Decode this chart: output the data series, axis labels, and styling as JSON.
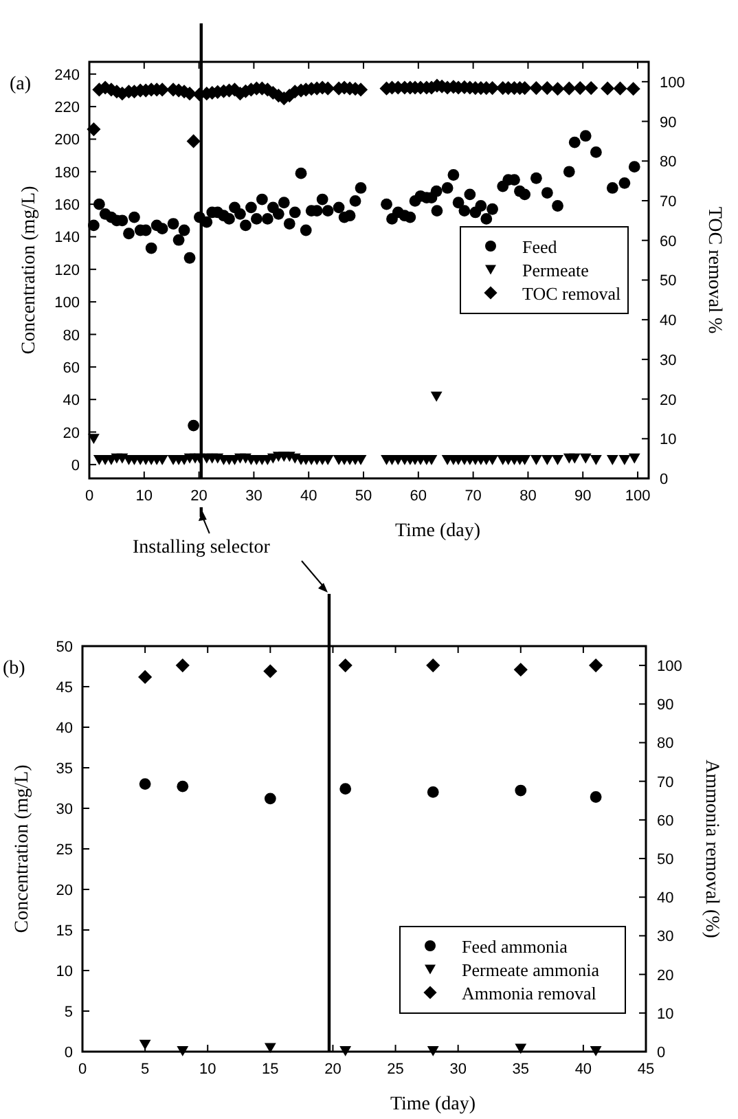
{
  "chart_data": [
    {
      "type": "scatter",
      "title": "(a)",
      "xlabel": "Time (day)",
      "ylabel": "Concentration (mg/L)",
      "y2label": "TOC removal %",
      "xlim": [
        0,
        102
      ],
      "xticks": [
        0,
        10,
        20,
        30,
        40,
        50,
        60,
        70,
        80,
        90,
        100
      ],
      "ylim": [
        -8.5,
        247.5
      ],
      "yticks": [
        0,
        20,
        40,
        60,
        80,
        100,
        120,
        140,
        160,
        180,
        200,
        220,
        240
      ],
      "y2lim": [
        0,
        105
      ],
      "y2ticks": [
        0,
        10,
        20,
        30,
        40,
        50,
        60,
        70,
        80,
        90,
        100
      ],
      "legend": "right",
      "ref_lines": [
        {
          "axis": "x",
          "value": 20.4
        }
      ],
      "annotations": [
        "Installing selector"
      ],
      "series": [
        {
          "name": "Feed",
          "color": "#000000",
          "marker": "circle",
          "x": [
            0.8,
            1.8,
            2.9,
            4,
            5,
            6,
            7.2,
            8.2,
            9.3,
            10.3,
            11.3,
            12.3,
            13.3,
            15.3,
            16.3,
            17.3,
            18.3,
            19,
            20.1,
            21.4,
            22.4,
            23.4,
            24.5,
            25.5,
            26.5,
            27.5,
            28.5,
            29.5,
            30.5,
            31.5,
            32.5,
            33.5,
            34.5,
            35.5,
            36.5,
            37.5,
            38.6,
            39.5,
            40.5,
            41.5,
            42.5,
            43.5,
            45.5,
            46.5,
            47.5,
            48.5,
            49.5,
            54.2,
            55.2,
            56.3,
            57.5,
            58.5,
            59.4,
            60.4,
            61.5,
            62.4,
            63.3,
            63.4,
            65.3,
            66.4,
            67.3,
            68.4,
            69.4,
            70.4,
            71.4,
            72.4,
            73.5,
            75.4,
            76.4,
            77.5,
            78.5,
            79.4,
            81.5,
            83.5,
            85.4,
            87.5,
            88.5,
            90.5,
            92.4,
            95.4,
            97.6,
            99.4
          ],
          "values": [
            147,
            160,
            154,
            152,
            150,
            150,
            142,
            152,
            144,
            144,
            133,
            147,
            145,
            148,
            138,
            144,
            127,
            24,
            152,
            149,
            155,
            155,
            153,
            151,
            158,
            154,
            147,
            158,
            151,
            163,
            151,
            158,
            154,
            161,
            148,
            155,
            179,
            144,
            156,
            156,
            163,
            156,
            158,
            152,
            153,
            162,
            170,
            160,
            151,
            155,
            153,
            152,
            162,
            165,
            164,
            164,
            168,
            156,
            170,
            178,
            161,
            156,
            166,
            155,
            159,
            151,
            157,
            171,
            175,
            175,
            168,
            166,
            176,
            167,
            159,
            180,
            198,
            202,
            192,
            170,
            173,
            183
          ]
        },
        {
          "name": "Permeate",
          "color": "#000000",
          "marker": "triangle",
          "x": [
            0.8,
            1.8,
            2.9,
            4,
            5,
            6,
            7.2,
            8.2,
            9.3,
            10.3,
            11.3,
            12.3,
            13.3,
            15.3,
            16.3,
            17.3,
            18.3,
            19.3,
            20.1,
            21.4,
            22.4,
            23.4,
            24.5,
            25.5,
            26.5,
            27.5,
            28.5,
            29.5,
            30.5,
            31.5,
            32.5,
            33.5,
            34.5,
            35.5,
            36.5,
            37.5,
            38.6,
            39.5,
            40.5,
            41.5,
            42.5,
            43.5,
            45.5,
            46.5,
            47.5,
            48.5,
            49.5,
            54.2,
            55.2,
            56.3,
            57.5,
            58.5,
            59.4,
            60.4,
            61.5,
            62.4,
            63.3,
            65.3,
            66.4,
            67.3,
            68.4,
            69.4,
            70.4,
            71.4,
            72.4,
            73.5,
            75.4,
            76.4,
            77.5,
            78.5,
            79.4,
            81.5,
            83.5,
            85.4,
            87.5,
            88.5,
            90.5,
            92.4,
            95.4,
            97.6,
            99.4
          ],
          "values": [
            16,
            3,
            3,
            3,
            4,
            4,
            3,
            3,
            3,
            3,
            3,
            3,
            3,
            3,
            3,
            3,
            4,
            4,
            4,
            4,
            4,
            4,
            3,
            3,
            3,
            4,
            4,
            3,
            3,
            3,
            3,
            4,
            5,
            5,
            5,
            4,
            3,
            3,
            3,
            3,
            3,
            3,
            3,
            3,
            3,
            3,
            3,
            3,
            3,
            3,
            3,
            3,
            3,
            3,
            3,
            3,
            42,
            3,
            3,
            3,
            3,
            3,
            3,
            3,
            3,
            3,
            3,
            3,
            3,
            3,
            3,
            3,
            3,
            3,
            4,
            4,
            4,
            3,
            3,
            3,
            4
          ]
        },
        {
          "name": "TOC removal",
          "color": "#000000",
          "marker": "diamond",
          "axis": "y2",
          "x": [
            0.8,
            1.8,
            2.9,
            4,
            5,
            6,
            7.2,
            8.2,
            9.3,
            10.3,
            11.3,
            12.3,
            13.3,
            15.3,
            16.3,
            17.3,
            18.3,
            19,
            20.1,
            21.4,
            22.4,
            23.4,
            24.5,
            25.5,
            26.5,
            27.5,
            28.5,
            29.5,
            30.5,
            31.5,
            32.5,
            33.5,
            34.5,
            35.5,
            36.5,
            37.5,
            38.6,
            39.5,
            40.5,
            41.5,
            42.5,
            43.5,
            45.5,
            46.5,
            47.5,
            48.5,
            49.5,
            54.2,
            55.2,
            56.3,
            57.5,
            58.5,
            59.4,
            60.4,
            61.5,
            62.4,
            63.4,
            64.3,
            65.3,
            66.4,
            67.3,
            68.4,
            69.4,
            70.4,
            71.4,
            72.4,
            73.5,
            75.4,
            76.4,
            77.5,
            78.5,
            79.4,
            81.5,
            83.5,
            85.4,
            87.5,
            89.5,
            91.5,
            94.5,
            96.8,
            99.2
          ],
          "values": [
            88,
            98,
            98.5,
            98,
            97.5,
            97,
            97.5,
            97.5,
            97.8,
            97.8,
            98,
            98,
            98,
            98,
            97.8,
            97.5,
            97,
            85,
            96.8,
            97,
            97.2,
            97.4,
            97.6,
            97.8,
            98,
            97,
            97.6,
            98,
            98.3,
            98.3,
            98,
            97.2,
            96.5,
            95.8,
            96.5,
            97.5,
            97.8,
            98,
            98.2,
            98.3,
            98.5,
            98.3,
            98.3,
            98.5,
            98.3,
            98.2,
            98,
            98.3,
            98.5,
            98.5,
            98.5,
            98.5,
            98.5,
            98.5,
            98.5,
            98.5,
            99,
            98.8,
            98.5,
            98.7,
            98.5,
            98.6,
            98.5,
            98.4,
            98.4,
            98.4,
            98.4,
            98.4,
            98.4,
            98.4,
            98.4,
            98.4,
            98.4,
            98.4,
            98.2,
            98.3,
            98.4,
            98.4,
            98.3,
            98.3,
            98.2
          ]
        }
      ]
    },
    {
      "type": "scatter",
      "title": "(b)",
      "xlabel": "Time (day)",
      "ylabel": "Concentration (mg/L)",
      "y2label": "Ammonia removal (%)",
      "xlim": [
        0,
        45
      ],
      "xticks": [
        0,
        5,
        10,
        15,
        20,
        25,
        30,
        35,
        40,
        45
      ],
      "ylim": [
        0,
        50
      ],
      "yticks": [
        0,
        5,
        10,
        15,
        20,
        25,
        30,
        35,
        40,
        45,
        50
      ],
      "y2lim": [
        0,
        105
      ],
      "y2ticks": [
        0,
        10,
        20,
        30,
        40,
        50,
        60,
        70,
        80,
        90,
        100
      ],
      "legend": "bottom right",
      "ref_lines": [
        {
          "axis": "x",
          "value": 19.7
        }
      ],
      "series": [
        {
          "name": "Feed ammonia",
          "color": "#000000",
          "marker": "circle",
          "x": [
            5,
            8,
            15,
            21,
            28,
            35,
            41
          ],
          "values": [
            33,
            32.7,
            31.2,
            32.4,
            32,
            32.2,
            31.4
          ]
        },
        {
          "name": "Permeate ammonia",
          "color": "#000000",
          "marker": "triangle",
          "x": [
            5,
            8,
            15,
            21,
            28,
            35,
            41
          ],
          "values": [
            0.9,
            0.1,
            0.5,
            0.1,
            0.1,
            0.4,
            0.1
          ]
        },
        {
          "name": "Ammonia removal",
          "color": "#000000",
          "marker": "diamond",
          "axis": "y2",
          "x": [
            5,
            8,
            15,
            21,
            28,
            35,
            41
          ],
          "values": [
            97,
            100,
            98.5,
            100,
            100,
            98.9,
            100
          ]
        }
      ]
    }
  ]
}
